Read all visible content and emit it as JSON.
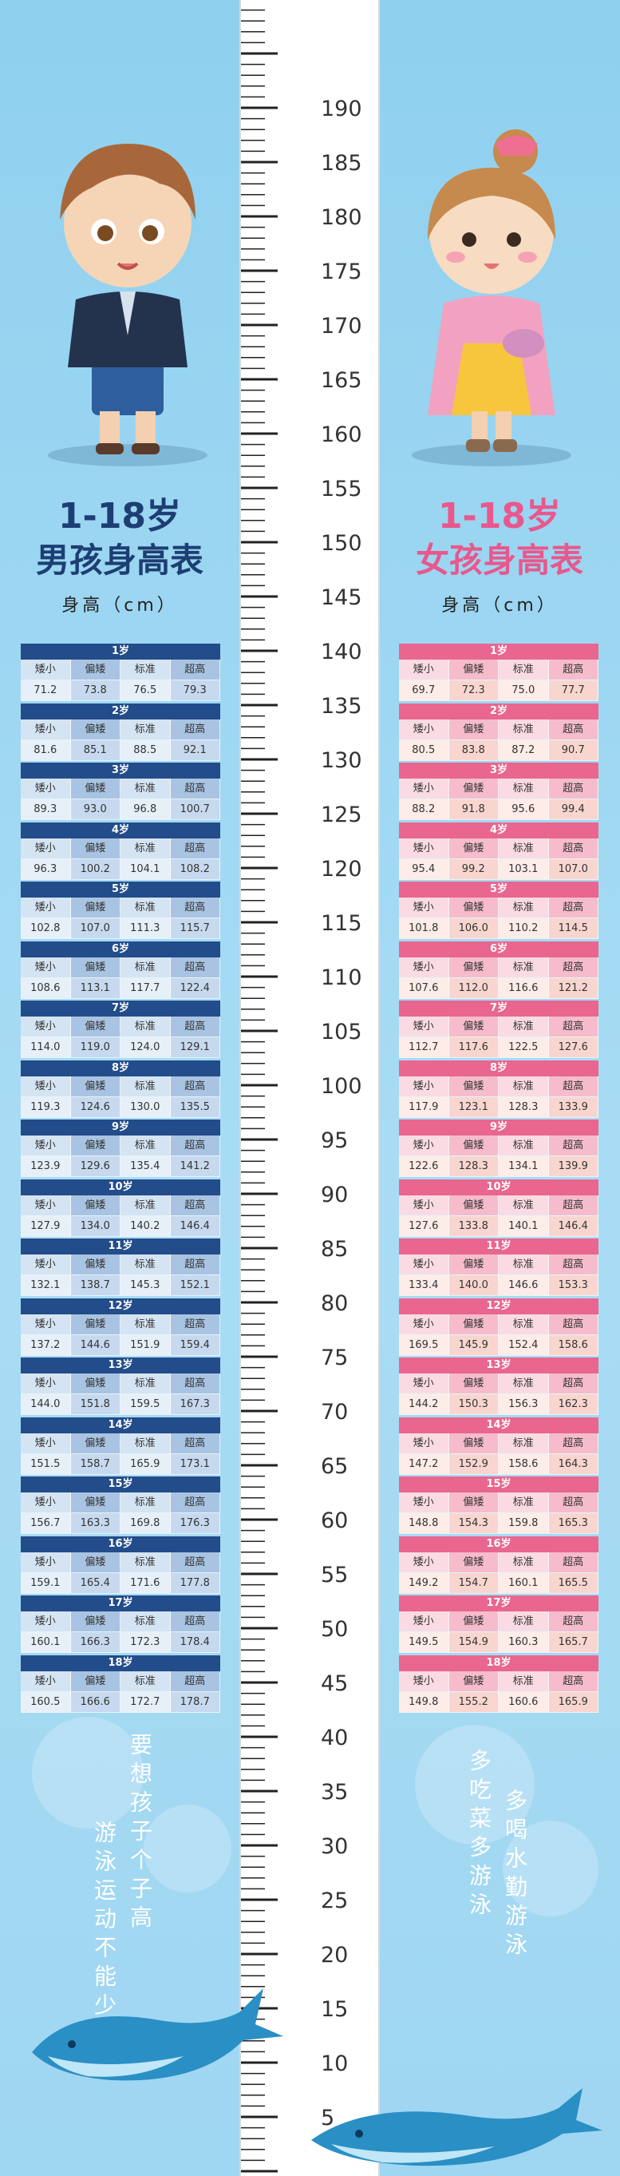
{
  "ruler": {
    "labels": [
      "190",
      "185",
      "180",
      "175",
      "170",
      "165",
      "160",
      "155",
      "150",
      "145",
      "140",
      "135",
      "130",
      "125",
      "120",
      "115",
      "110",
      "105",
      "100",
      "95",
      "90",
      "85",
      "80",
      "75",
      "70",
      "65",
      "60",
      "55",
      "50",
      "45",
      "40",
      "35",
      "30",
      "25",
      "20",
      "15",
      "10",
      "5"
    ]
  },
  "boy": {
    "title_age": "1-18岁",
    "title_main": "男孩身高表",
    "subtitle": "身高（cm）",
    "col_labels": [
      "矮小",
      "偏矮",
      "标准",
      "超高"
    ],
    "rows": [
      {
        "age": "1岁",
        "v": [
          "71.2",
          "73.8",
          "76.5",
          "79.3"
        ]
      },
      {
        "age": "2岁",
        "v": [
          "81.6",
          "85.1",
          "88.5",
          "92.1"
        ]
      },
      {
        "age": "3岁",
        "v": [
          "89.3",
          "93.0",
          "96.8",
          "100.7"
        ]
      },
      {
        "age": "4岁",
        "v": [
          "96.3",
          "100.2",
          "104.1",
          "108.2"
        ]
      },
      {
        "age": "5岁",
        "v": [
          "102.8",
          "107.0",
          "111.3",
          "115.7"
        ]
      },
      {
        "age": "6岁",
        "v": [
          "108.6",
          "113.1",
          "117.7",
          "122.4"
        ]
      },
      {
        "age": "7岁",
        "v": [
          "114.0",
          "119.0",
          "124.0",
          "129.1"
        ]
      },
      {
        "age": "8岁",
        "v": [
          "119.3",
          "124.6",
          "130.0",
          "135.5"
        ]
      },
      {
        "age": "9岁",
        "v": [
          "123.9",
          "129.6",
          "135.4",
          "141.2"
        ]
      },
      {
        "age": "10岁",
        "v": [
          "127.9",
          "134.0",
          "140.2",
          "146.4"
        ]
      },
      {
        "age": "11岁",
        "v": [
          "132.1",
          "138.7",
          "145.3",
          "152.1"
        ]
      },
      {
        "age": "12岁",
        "v": [
          "137.2",
          "144.6",
          "151.9",
          "159.4"
        ]
      },
      {
        "age": "13岁",
        "v": [
          "144.0",
          "151.8",
          "159.5",
          "167.3"
        ]
      },
      {
        "age": "14岁",
        "v": [
          "151.5",
          "158.7",
          "165.9",
          "173.1"
        ]
      },
      {
        "age": "15岁",
        "v": [
          "156.7",
          "163.3",
          "169.8",
          "176.3"
        ]
      },
      {
        "age": "16岁",
        "v": [
          "159.1",
          "165.4",
          "171.6",
          "177.8"
        ]
      },
      {
        "age": "17岁",
        "v": [
          "160.1",
          "166.3",
          "172.3",
          "178.4"
        ]
      },
      {
        "age": "18岁",
        "v": [
          "160.5",
          "166.6",
          "172.7",
          "178.7"
        ]
      }
    ],
    "slogan": [
      "要想孩子个子高",
      "游泳运动不能少"
    ]
  },
  "girl": {
    "title_age": "1-18岁",
    "title_main": "女孩身高表",
    "subtitle": "身高（cm）",
    "col_labels": [
      "矮小",
      "偏矮",
      "标准",
      "超高"
    ],
    "rows": [
      {
        "age": "1岁",
        "v": [
          "69.7",
          "72.3",
          "75.0",
          "77.7"
        ]
      },
      {
        "age": "2岁",
        "v": [
          "80.5",
          "83.8",
          "87.2",
          "90.7"
        ]
      },
      {
        "age": "3岁",
        "v": [
          "88.2",
          "91.8",
          "95.6",
          "99.4"
        ]
      },
      {
        "age": "4岁",
        "v": [
          "95.4",
          "99.2",
          "103.1",
          "107.0"
        ]
      },
      {
        "age": "5岁",
        "v": [
          "101.8",
          "106.0",
          "110.2",
          "114.5"
        ]
      },
      {
        "age": "6岁",
        "v": [
          "107.6",
          "112.0",
          "116.6",
          "121.2"
        ]
      },
      {
        "age": "7岁",
        "v": [
          "112.7",
          "117.6",
          "122.5",
          "127.6"
        ]
      },
      {
        "age": "8岁",
        "v": [
          "117.9",
          "123.1",
          "128.3",
          "133.9"
        ]
      },
      {
        "age": "9岁",
        "v": [
          "122.6",
          "128.3",
          "134.1",
          "139.9"
        ]
      },
      {
        "age": "10岁",
        "v": [
          "127.6",
          "133.8",
          "140.1",
          "146.4"
        ]
      },
      {
        "age": "11岁",
        "v": [
          "133.4",
          "140.0",
          "146.6",
          "153.3"
        ]
      },
      {
        "age": "12岁",
        "v": [
          "169.5",
          "145.9",
          "152.4",
          "158.6"
        ]
      },
      {
        "age": "13岁",
        "v": [
          "144.2",
          "150.3",
          "156.3",
          "162.3"
        ]
      },
      {
        "age": "14岁",
        "v": [
          "147.2",
          "152.9",
          "158.6",
          "164.3"
        ]
      },
      {
        "age": "15岁",
        "v": [
          "148.8",
          "154.3",
          "159.8",
          "165.3"
        ]
      },
      {
        "age": "16岁",
        "v": [
          "149.2",
          "154.7",
          "160.1",
          "165.5"
        ]
      },
      {
        "age": "17岁",
        "v": [
          "149.5",
          "154.9",
          "160.3",
          "165.7"
        ]
      },
      {
        "age": "18岁",
        "v": [
          "149.8",
          "155.2",
          "160.6",
          "165.9"
        ]
      }
    ],
    "slogan": [
      "多吃菜多游泳",
      "多喝水勤游泳"
    ]
  },
  "colors": {
    "boy_primary": "#1d3e73",
    "girl_primary": "#e8588d",
    "background": "#a9dcf4"
  }
}
